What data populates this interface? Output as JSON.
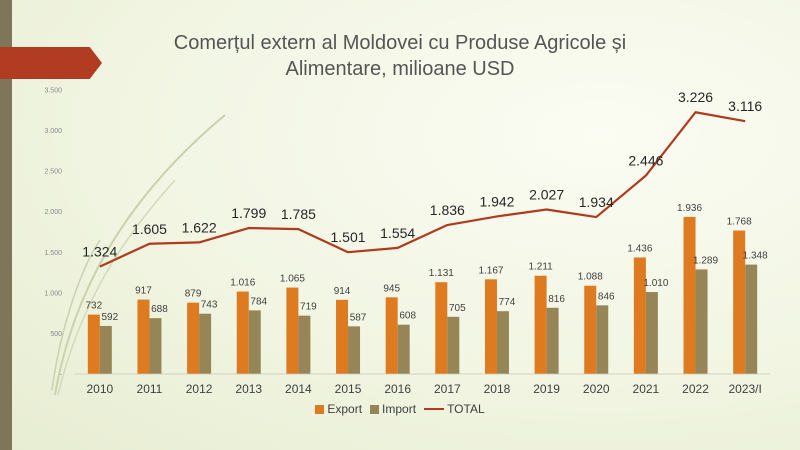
{
  "title": {
    "line1": "Comerțul extern al Moldovei cu Produse Agricole și",
    "line2": "Alimentare, milioane USD"
  },
  "colors": {
    "export": "#de7a1f",
    "import": "#958557",
    "total": "#b03a1e",
    "accent_arrow": "#b23c22",
    "left_bar": "#7f7659"
  },
  "chart_data": {
    "type": "bar",
    "categories": [
      "2010",
      "2011",
      "2012",
      "2013",
      "2014",
      "2015",
      "2016",
      "2017",
      "2018",
      "2019",
      "2020",
      "2021",
      "2022",
      "2023/I"
    ],
    "series": [
      {
        "name": "Export",
        "type": "bar",
        "values": [
          732,
          917,
          879,
          1016,
          1065,
          914,
          945,
          1131,
          1167,
          1211,
          1088,
          1436,
          1936,
          1768
        ],
        "labels": [
          "732",
          "917",
          "879",
          "1.016",
          "1.065",
          "914",
          "945",
          "1.131",
          "1.167",
          "1.211",
          "1.088",
          "1.436",
          "1.936",
          "1.768"
        ]
      },
      {
        "name": "Import",
        "type": "bar",
        "values": [
          592,
          688,
          743,
          784,
          719,
          587,
          608,
          705,
          774,
          816,
          846,
          1010,
          1289,
          1348
        ],
        "labels": [
          "592",
          "688",
          "743",
          "784",
          "719",
          "587",
          "608",
          "705",
          "774",
          "816",
          "846",
          "1.010",
          "1.289",
          "1.348"
        ]
      },
      {
        "name": "TOTAL",
        "type": "line",
        "values": [
          1324,
          1605,
          1622,
          1799,
          1785,
          1501,
          1554,
          1836,
          1942,
          2027,
          1934,
          2446,
          3226,
          3116
        ],
        "labels": [
          "1.324",
          "1.605",
          "1.622",
          "1.799",
          "1.785",
          "1.501",
          "1.554",
          "1.836",
          "1.942",
          "2.027",
          "1.934",
          "2.446",
          "3.226",
          "3.116"
        ]
      }
    ],
    "ylim": [
      0,
      3500
    ],
    "yticks": [
      0,
      500,
      1000,
      1500,
      2000,
      2500,
      3000,
      3500
    ],
    "ytick_labels": [
      "-",
      "500",
      "1.000",
      "1.500",
      "2.000",
      "2.500",
      "3.000",
      "3.500"
    ],
    "legend_position": "bottom",
    "grid": false
  }
}
